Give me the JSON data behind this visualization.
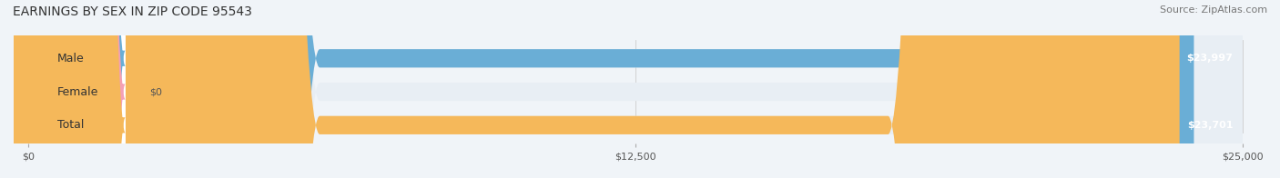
{
  "title": "EARNINGS BY SEX IN ZIP CODE 95543",
  "source": "Source: ZipAtlas.com",
  "categories": [
    "Male",
    "Female",
    "Total"
  ],
  "values": [
    23997,
    0,
    23701
  ],
  "max_value": 25000,
  "bar_colors": [
    "#6aaed6",
    "#f4a0b5",
    "#f5b85a"
  ],
  "label_colors": [
    "#6aaed6",
    "#f4a0b5",
    "#f5b85a"
  ],
  "value_labels": [
    "$23,997",
    "$0",
    "$23,701"
  ],
  "xtick_labels": [
    "$0",
    "$12,500",
    "$25,000"
  ],
  "xtick_values": [
    0,
    12500,
    25000
  ],
  "background_color": "#f0f4f8",
  "bar_bg_color": "#e8eef4",
  "title_fontsize": 10,
  "source_fontsize": 8,
  "bar_height": 0.55,
  "label_fontsize": 9,
  "value_fontsize": 8
}
